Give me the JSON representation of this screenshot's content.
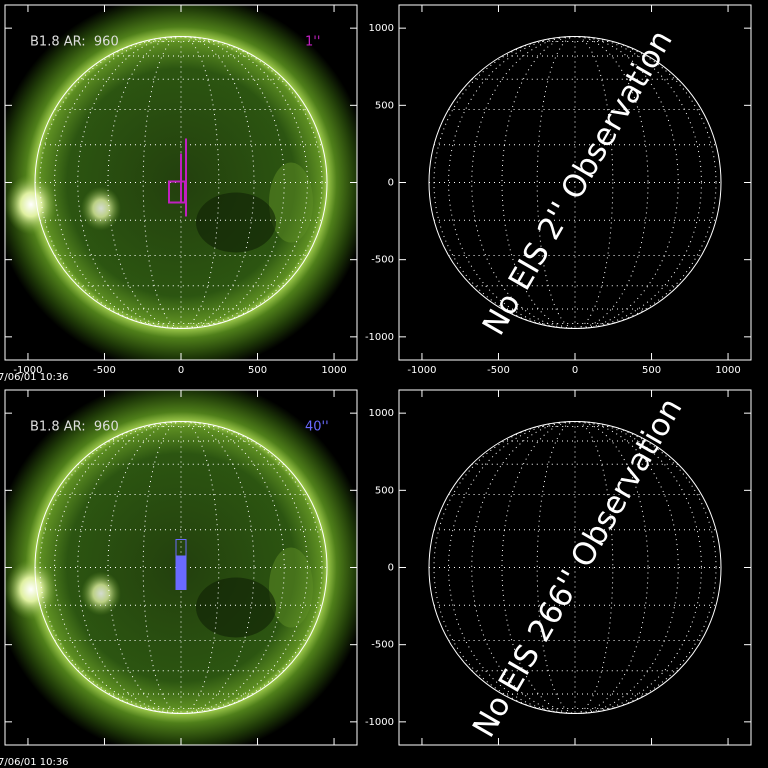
{
  "panels": [
    {
      "type": "solar-image",
      "title": "B1.8 AR:  960",
      "scale_label": "1''",
      "scale_color": "#c020c0",
      "timestamp": "7/06/01 10:36",
      "xlim": [
        -1150,
        1150
      ],
      "ylim": [
        -1150,
        1150
      ],
      "xticks": [
        -1000,
        -500,
        0,
        500,
        1000
      ],
      "yticks": [
        -1000,
        -500,
        0,
        500,
        1000
      ],
      "show_x_labels": true,
      "show_y_labels": false
    },
    {
      "type": "blank",
      "note": "No EIS 2'' Observation",
      "xlim": [
        -1150,
        1150
      ],
      "ylim": [
        -1150,
        1150
      ],
      "xticks": [
        -1000,
        -500,
        0,
        500,
        1000
      ],
      "yticks": [
        -1000,
        -500,
        0,
        500,
        1000
      ],
      "show_x_labels": true,
      "show_y_labels": true
    },
    {
      "type": "solar-image",
      "title": "B1.8 AR:  960",
      "scale_label": "40''",
      "scale_color": "#6a6aff",
      "timestamp": "7/06/01 10:36",
      "xlim": [
        -1150,
        1150
      ],
      "ylim": [
        -1150,
        1150
      ],
      "xticks": [
        -1000,
        -500,
        0,
        500,
        1000
      ],
      "yticks": [
        -1000,
        -500,
        0,
        500,
        1000
      ],
      "show_x_labels": false,
      "show_y_labels": false
    },
    {
      "type": "blank",
      "note": "No EIS 266'' Observation",
      "xlim": [
        -1150,
        1150
      ],
      "ylim": [
        -1150,
        1150
      ],
      "xticks": [
        -1000,
        -500,
        0,
        500,
        1000
      ],
      "yticks": [
        -1000,
        -500,
        0,
        500,
        1000
      ],
      "show_x_labels": false,
      "show_y_labels": true
    }
  ]
}
